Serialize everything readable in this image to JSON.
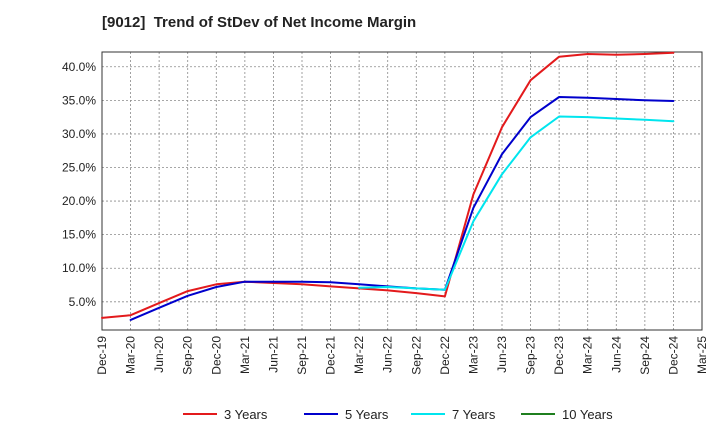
{
  "chart_data": {
    "type": "line",
    "title": "[9012]  Trend of StDev of Net Income Margin",
    "xlabel": "",
    "ylabel": "",
    "x": [
      "Dec-19",
      "Mar-20",
      "Jun-20",
      "Sep-20",
      "Dec-20",
      "Mar-21",
      "Jun-21",
      "Sep-21",
      "Dec-21",
      "Mar-22",
      "Jun-22",
      "Sep-22",
      "Dec-22",
      "Mar-23",
      "Jun-23",
      "Sep-23",
      "Dec-23",
      "Mar-24",
      "Jun-24",
      "Sep-24",
      "Dec-24",
      "Mar-25"
    ],
    "ylim": [
      0.8,
      42.2
    ],
    "yticks": [
      5,
      10,
      15,
      20,
      25,
      30,
      35,
      40
    ],
    "ytick_labels": [
      "5.0%",
      "10.0%",
      "15.0%",
      "20.0%",
      "25.0%",
      "30.0%",
      "35.0%",
      "40.0%"
    ],
    "grid": true,
    "legend_position": "bottom",
    "series": [
      {
        "name": "3 Years",
        "color": "#e31a1c",
        "values": [
          2.6,
          3.0,
          4.8,
          6.6,
          7.6,
          8.0,
          7.8,
          7.6,
          7.3,
          7.0,
          6.7,
          6.3,
          5.8,
          21.0,
          31.0,
          38.0,
          41.5,
          41.9,
          41.8,
          41.9,
          42.1,
          null
        ]
      },
      {
        "name": "5 Years",
        "color": "#0000cc",
        "values": [
          null,
          2.3,
          4.1,
          5.9,
          7.2,
          8.0,
          8.0,
          8.0,
          7.9,
          7.6,
          7.3,
          7.0,
          6.8,
          19.0,
          27.0,
          32.5,
          35.5,
          35.4,
          35.2,
          35.0,
          34.9,
          null
        ]
      },
      {
        "name": "7 Years",
        "color": "#00e5ee",
        "values": [
          null,
          null,
          null,
          null,
          null,
          null,
          null,
          null,
          null,
          7.1,
          7.2,
          7.0,
          6.8,
          17.0,
          24.0,
          29.5,
          32.6,
          32.5,
          32.3,
          32.1,
          31.9,
          null
        ]
      },
      {
        "name": "10 Years",
        "color": "#1f7f1f",
        "values": [
          null,
          null,
          null,
          null,
          null,
          null,
          null,
          null,
          null,
          null,
          null,
          null,
          null,
          null,
          null,
          null,
          null,
          null,
          null,
          null,
          null,
          null
        ]
      }
    ]
  }
}
